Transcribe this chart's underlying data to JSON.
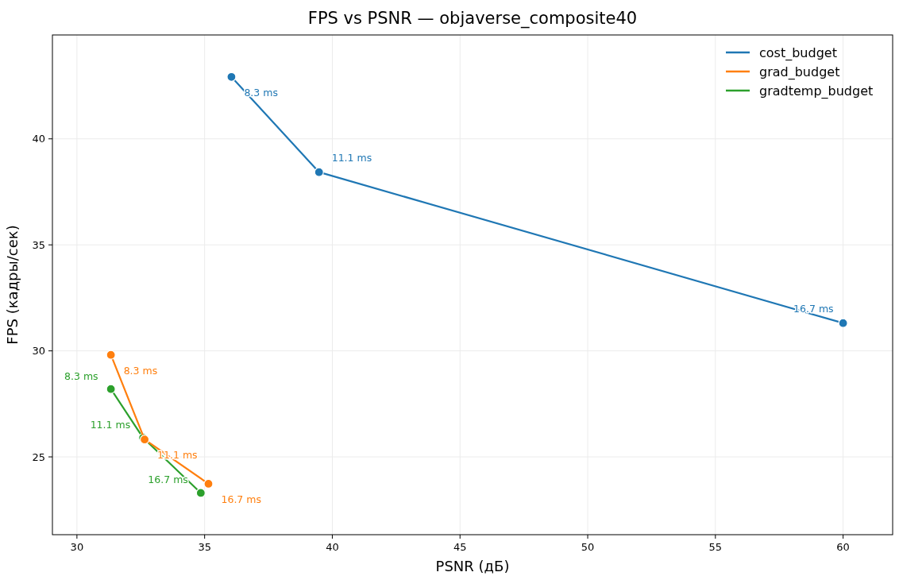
{
  "chart_data": {
    "type": "line",
    "title": "FPS vs PSNR — objaverse_composite40",
    "xlabel": "PSNR (дБ)",
    "ylabel": "FPS (кадры/сек)",
    "xlim": [
      29.04,
      61.94
    ],
    "xticks": [
      30,
      35,
      40,
      45,
      50,
      55,
      60
    ],
    "ylim": [
      21.33,
      44.9
    ],
    "yticks": [
      25,
      30,
      35,
      40
    ],
    "grid": true,
    "legend": "top right",
    "marker": "circle",
    "line_style": "solid",
    "series": [
      {
        "name": "cost_budget",
        "color": "#1f77b4",
        "x": [
          36.05,
          39.48,
          60
        ],
        "values": [
          42.92,
          38.43,
          31.31
        ]
      },
      {
        "name": "grad_budget",
        "color": "#ff7f0e",
        "x": [
          31.33,
          32.65,
          35.15
        ],
        "values": [
          29.81,
          25.82,
          23.73
        ]
      },
      {
        "name": "gradtemp_budget",
        "color": "#2ca02c",
        "x": [
          31.33,
          32.59,
          34.85
        ],
        "values": [
          28.2,
          25.9,
          23.3
        ]
      }
    ],
    "annotations": [
      {
        "text": "8.3 ms",
        "x": 36.05,
        "y": 42.92
      },
      {
        "text": "11.1 ms",
        "x": 39.48,
        "y": 38.43
      },
      {
        "text": "16.7 ms",
        "x": 60,
        "y": 31.31
      },
      {
        "text": "8.3 ms",
        "x": 31.33,
        "y": 29.81
      },
      {
        "text": "11.1 ms",
        "x": 32.65,
        "y": 25.82
      },
      {
        "text": "16.7 ms",
        "x": 35.15,
        "y": 23.73
      },
      {
        "text": "8.3 ms",
        "x": 31.33,
        "y": 28.2
      },
      {
        "text": "11.1 ms",
        "x": 32.59,
        "y": 25.9
      },
      {
        "text": "16.7 ms",
        "x": 34.85,
        "y": 23.3
      }
    ]
  }
}
